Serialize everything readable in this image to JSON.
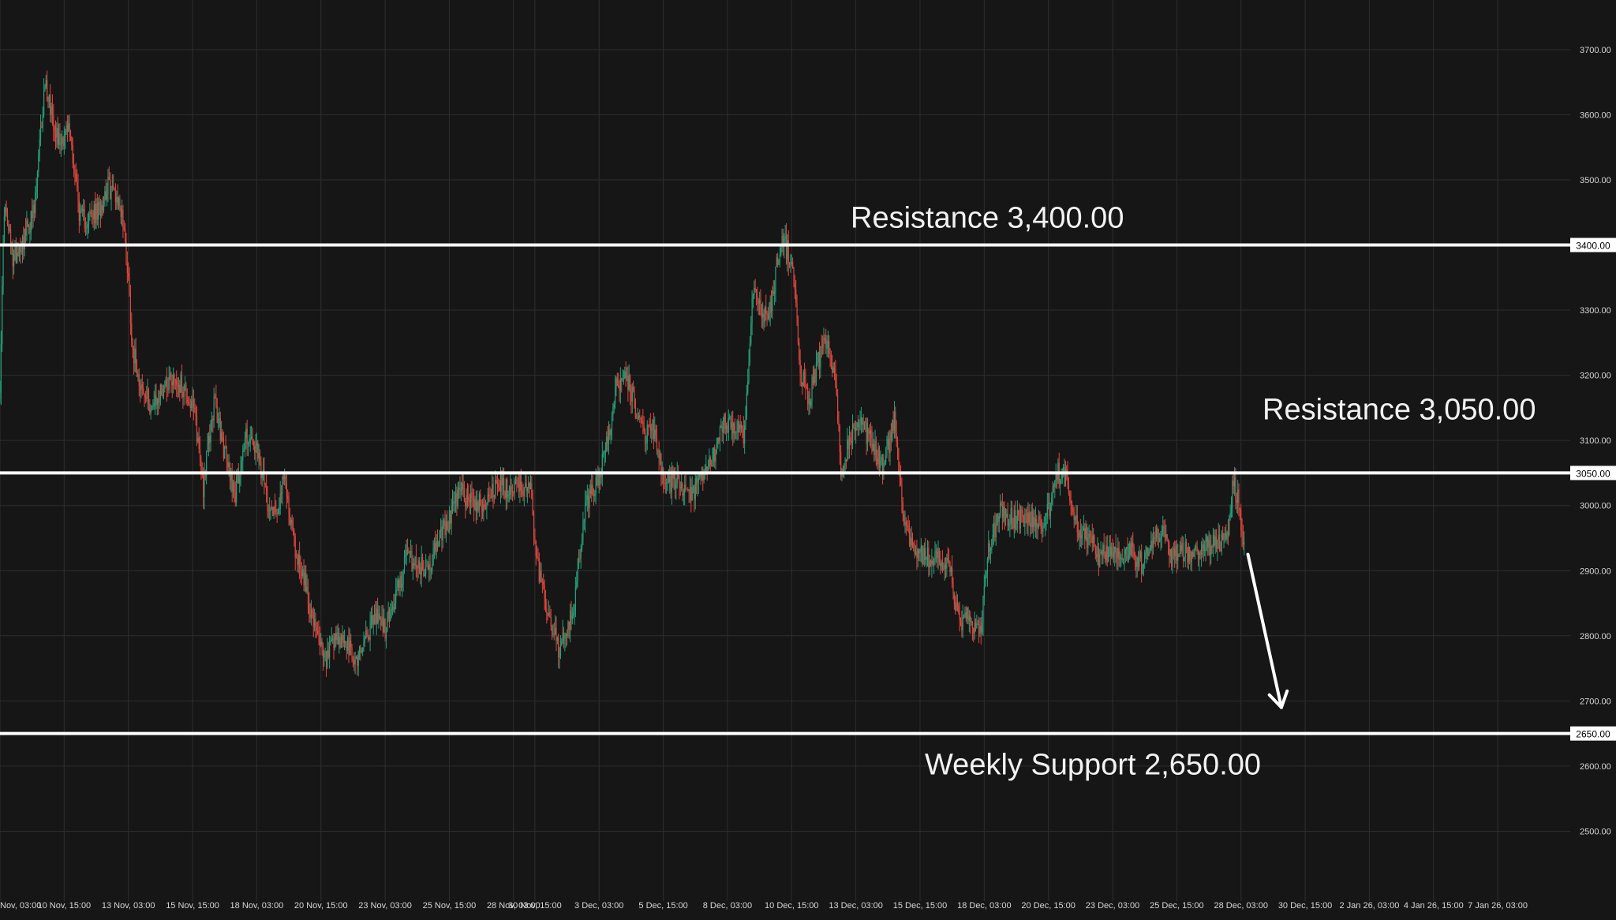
{
  "colors": {
    "background": "#161616",
    "grid": "#2e2e2e",
    "axis_text": "#d6d6d6",
    "up_candle": "#26a17b",
    "down_candle": "#e0473f",
    "level_line": "#ffffff",
    "annotation_text": "#f2f2f2",
    "price_tag_bg": "#ffffff",
    "price_tag_text": "#000000"
  },
  "chart_data": {
    "type": "candlestick",
    "y_axis": {
      "ticks": [
        "3700.00",
        "3600.00",
        "3500.00",
        "3400.00",
        "3300.00",
        "3200.00",
        "3100.00",
        "3000.00",
        "2900.00",
        "2800.00",
        "2700.00",
        "2600.00",
        "2500.00"
      ],
      "tick_values": [
        3700,
        3600,
        3500,
        3400,
        3300,
        3200,
        3100,
        3000,
        2900,
        2800,
        2700,
        2600,
        2500
      ],
      "range": [
        2370,
        3745
      ]
    },
    "x_axis": {
      "ticks": [
        "Nov, 03:00",
        "10 Nov, 15:00",
        "13 Nov, 03:00",
        "15 Nov, 15:00",
        "18 Nov, 03:00",
        "20 Nov, 15:00",
        "23 Nov, 03:00",
        "25 Nov, 15:00",
        "28 Nov, 03:00",
        "30 Nov, 15:00",
        "3 Dec, 03:00",
        "5 Dec, 15:00",
        "8 Dec, 03:00",
        "10 Dec, 15:00",
        "13 Dec, 03:00",
        "15 Dec, 15:00",
        "18 Dec, 03:00",
        "20 Dec, 15:00",
        "23 Dec, 03:00",
        "25 Dec, 15:00",
        "28 Dec, 03:00",
        "30 Dec, 15:00",
        "2 Jan 26, 03:00",
        "4 Jan 26, 15:00",
        "7 Jan 26, 03:00"
      ],
      "tick_index": [
        0,
        60,
        120,
        180,
        240,
        300,
        360,
        420,
        480,
        500,
        560,
        620,
        680,
        740,
        800,
        860,
        920,
        980,
        1040,
        1100,
        1160,
        1220,
        1280,
        1340,
        1400
      ]
    },
    "price_anchors": [
      [
        0,
        3190
      ],
      [
        4,
        3460
      ],
      [
        12,
        3380
      ],
      [
        22,
        3410
      ],
      [
        32,
        3450
      ],
      [
        42,
        3650
      ],
      [
        55,
        3560
      ],
      [
        65,
        3580
      ],
      [
        75,
        3440
      ],
      [
        82,
        3440
      ],
      [
        92,
        3450
      ],
      [
        100,
        3490
      ],
      [
        108,
        3480
      ],
      [
        114,
        3450
      ],
      [
        120,
        3350
      ],
      [
        124,
        3240
      ],
      [
        134,
        3170
      ],
      [
        144,
        3150
      ],
      [
        152,
        3180
      ],
      [
        160,
        3200
      ],
      [
        172,
        3180
      ],
      [
        182,
        3140
      ],
      [
        190,
        3030
      ],
      [
        200,
        3160
      ],
      [
        210,
        3080
      ],
      [
        220,
        3020
      ],
      [
        230,
        3110
      ],
      [
        240,
        3080
      ],
      [
        250,
        3010
      ],
      [
        258,
        2990
      ],
      [
        266,
        3040
      ],
      [
        276,
        2930
      ],
      [
        284,
        2890
      ],
      [
        294,
        2810
      ],
      [
        304,
        2760
      ],
      [
        314,
        2790
      ],
      [
        322,
        2790
      ],
      [
        332,
        2760
      ],
      [
        342,
        2800
      ],
      [
        352,
        2830
      ],
      [
        360,
        2810
      ],
      [
        370,
        2860
      ],
      [
        380,
        2920
      ],
      [
        390,
        2910
      ],
      [
        400,
        2900
      ],
      [
        410,
        2950
      ],
      [
        418,
        2970
      ],
      [
        424,
        3000
      ],
      [
        430,
        3020
      ],
      [
        440,
        3010
      ],
      [
        450,
        3000
      ],
      [
        458,
        3020
      ],
      [
        468,
        3030
      ],
      [
        476,
        3020
      ],
      [
        482,
        3040
      ],
      [
        488,
        3030
      ],
      [
        496,
        3020
      ],
      [
        502,
        2910
      ],
      [
        512,
        2840
      ],
      [
        522,
        2780
      ],
      [
        530,
        2800
      ],
      [
        538,
        2860
      ],
      [
        546,
        2990
      ],
      [
        556,
        3030
      ],
      [
        566,
        3080
      ],
      [
        576,
        3180
      ],
      [
        584,
        3210
      ],
      [
        594,
        3150
      ],
      [
        602,
        3110
      ],
      [
        612,
        3120
      ],
      [
        620,
        3030
      ],
      [
        632,
        3040
      ],
      [
        642,
        3010
      ],
      [
        652,
        3030
      ],
      [
        660,
        3050
      ],
      [
        668,
        3080
      ],
      [
        678,
        3130
      ],
      [
        688,
        3120
      ],
      [
        696,
        3110
      ],
      [
        704,
        3340
      ],
      [
        712,
        3290
      ],
      [
        720,
        3300
      ],
      [
        730,
        3410
      ],
      [
        740,
        3380
      ],
      [
        748,
        3210
      ],
      [
        756,
        3160
      ],
      [
        764,
        3220
      ],
      [
        772,
        3250
      ],
      [
        780,
        3200
      ],
      [
        786,
        3060
      ],
      [
        796,
        3110
      ],
      [
        806,
        3120
      ],
      [
        816,
        3090
      ],
      [
        826,
        3060
      ],
      [
        836,
        3130
      ],
      [
        846,
        2970
      ],
      [
        856,
        2930
      ],
      [
        866,
        2920
      ],
      [
        876,
        2920
      ],
      [
        888,
        2900
      ],
      [
        896,
        2820
      ],
      [
        906,
        2830
      ],
      [
        916,
        2800
      ],
      [
        924,
        2930
      ],
      [
        934,
        2990
      ],
      [
        944,
        2980
      ],
      [
        954,
        2980
      ],
      [
        962,
        2980
      ],
      [
        972,
        2970
      ],
      [
        980,
        2990
      ],
      [
        988,
        3050
      ],
      [
        998,
        3040
      ],
      [
        1008,
        2960
      ],
      [
        1018,
        2950
      ],
      [
        1028,
        2920
      ],
      [
        1038,
        2930
      ],
      [
        1048,
        2930
      ],
      [
        1058,
        2930
      ],
      [
        1068,
        2910
      ],
      [
        1076,
        2950
      ],
      [
        1086,
        2960
      ],
      [
        1094,
        2920
      ],
      [
        1104,
        2930
      ],
      [
        1114,
        2925
      ],
      [
        1124,
        2930
      ],
      [
        1132,
        2940
      ],
      [
        1140,
        2940
      ],
      [
        1148,
        2960
      ],
      [
        1153,
        3040
      ],
      [
        1158,
        3000
      ],
      [
        1163,
        2930
      ]
    ],
    "levels": [
      {
        "value": 3400,
        "tag": "3400.00",
        "label": "Resistance 3,400.00"
      },
      {
        "value": 3050,
        "tag": "3050.00",
        "label": "Resistance 3,050.00"
      },
      {
        "value": 2650,
        "tag": "2650.00",
        "label": "Weekly Support 2,650.00"
      }
    ],
    "projection_arrow": {
      "from_index": 1165,
      "from_value": 2925,
      "to_index": 1200,
      "to_value": 2690
    }
  }
}
